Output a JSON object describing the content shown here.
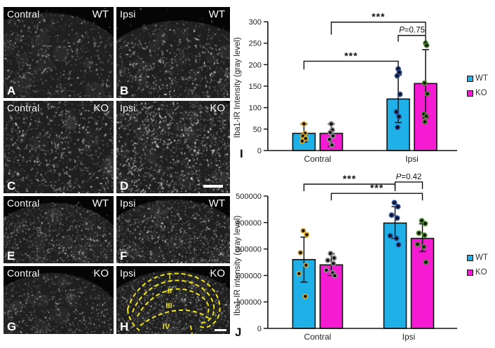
{
  "figure": {
    "panels": [
      {
        "letter": "A",
        "location": "Contral",
        "genotype": "WT"
      },
      {
        "letter": "B",
        "location": "Ipsi",
        "genotype": "WT"
      },
      {
        "letter": "C",
        "location": "Contral",
        "genotype": "KO"
      },
      {
        "letter": "D",
        "location": "Ipsi",
        "genotype": "KO"
      },
      {
        "letter": "E",
        "location": "Contral",
        "genotype": "WT"
      },
      {
        "letter": "F",
        "location": "Ipsi",
        "genotype": "WT"
      },
      {
        "letter": "G",
        "location": "Contral",
        "genotype": "KO"
      },
      {
        "letter": "H",
        "location": "Ipsi",
        "genotype": "KO",
        "lamina_labels": [
          "I",
          "II",
          "III",
          "IV"
        ]
      }
    ]
  },
  "chart_data": [
    {
      "panel_letter": "I",
      "type": "bar",
      "ylabel": "Iba1-IR Intensity (gray level)",
      "xlabel": "",
      "ylim": [
        0,
        300
      ],
      "yticks": [
        0,
        50,
        100,
        150,
        200,
        250,
        300
      ],
      "categories": [
        "Contral",
        "Ipsi"
      ],
      "legend_position": "right",
      "series": [
        {
          "name": "WT",
          "color": "#1fb0e8",
          "values": [
            40,
            120
          ],
          "err_lo": [
            20,
            65
          ],
          "err_hi": [
            62,
            176
          ],
          "points": [
            [
              62,
              40,
              34,
              28,
              22
            ],
            [
              190,
              182,
              174,
              131,
              90,
              79,
              54
            ]
          ],
          "point_ring": [
            "#dfa827",
            "#2b4f9e"
          ]
        },
        {
          "name": "KO",
          "color": "#f41bd3",
          "values": [
            40,
            156
          ],
          "err_lo": [
            10,
            76
          ],
          "err_hi": [
            62,
            235
          ],
          "points": [
            [
              62,
              48,
              42,
              34,
              26,
              13
            ],
            [
              250,
              245,
              157,
              132,
              85,
              80,
              67
            ]
          ],
          "point_ring": [
            "#8f8f8f",
            "#4e8c2e"
          ]
        }
      ],
      "significance": [
        {
          "from": [
            "Contral",
            "KO"
          ],
          "to": [
            "Ipsi",
            "KO"
          ],
          "y": 299,
          "drop": 18,
          "label": "***"
        },
        {
          "from": [
            "Ipsi",
            "WT"
          ],
          "to": [
            "Ipsi",
            "KO"
          ],
          "y": 268,
          "drop": 9,
          "label": "P=0.75"
        },
        {
          "from": [
            "Contral",
            "WT"
          ],
          "to": [
            "Ipsi",
            "WT"
          ],
          "y": 208,
          "drop": 12,
          "label": "***"
        }
      ]
    },
    {
      "panel_letter": "J",
      "type": "bar",
      "ylabel": "Iba1-IR intensity (gray level)",
      "xlabel": "",
      "ylim": [
        0,
        500000
      ],
      "yticks": [
        0,
        100000,
        200000,
        300000,
        400000,
        500000
      ],
      "categories": [
        "Contral",
        "Ipsi"
      ],
      "legend_position": "right",
      "series": [
        {
          "name": "WT",
          "color": "#1fb0e8",
          "values": [
            260000,
            398000
          ],
          "err_lo": [
            175000,
            340000
          ],
          "err_hi": [
            345000,
            460000
          ],
          "points": [
            [
              369000,
              354000,
              286000,
              239000,
              207000,
              121000
            ],
            [
              475000,
              460000,
              428000,
              417000,
              350000,
              340000,
              316000
            ]
          ],
          "point_ring": [
            "#dfa827",
            "#2b4f9e"
          ]
        },
        {
          "name": "KO",
          "color": "#f41bd3",
          "values": [
            240000,
            340000
          ],
          "err_lo": [
            200000,
            290000
          ],
          "err_hi": [
            282000,
            395000
          ],
          "points": [
            [
              283000,
              266000,
              257000,
              245000,
              220000,
              210000,
              199000
            ],
            [
              407000,
              396000,
              360000,
              352000,
              318000,
              308000,
              250000
            ]
          ],
          "point_ring": [
            "#8f8f8f",
            "#4e8c2e"
          ]
        }
      ],
      "significance": [
        {
          "from": [
            "Contral",
            "WT"
          ],
          "to": [
            "Ipsi",
            "WT"
          ],
          "y": 545000,
          "drop": 10,
          "label": "***"
        },
        {
          "from": [
            "Ipsi",
            "WT"
          ],
          "to": [
            "Ipsi",
            "KO"
          ],
          "y": 553000,
          "drop": 10,
          "label": "P=0.42"
        },
        {
          "from": [
            "Contral",
            "KO"
          ],
          "to": [
            "Ipsi",
            "KO"
          ],
          "y": 510000,
          "drop": 10,
          "label": "***"
        }
      ]
    }
  ]
}
